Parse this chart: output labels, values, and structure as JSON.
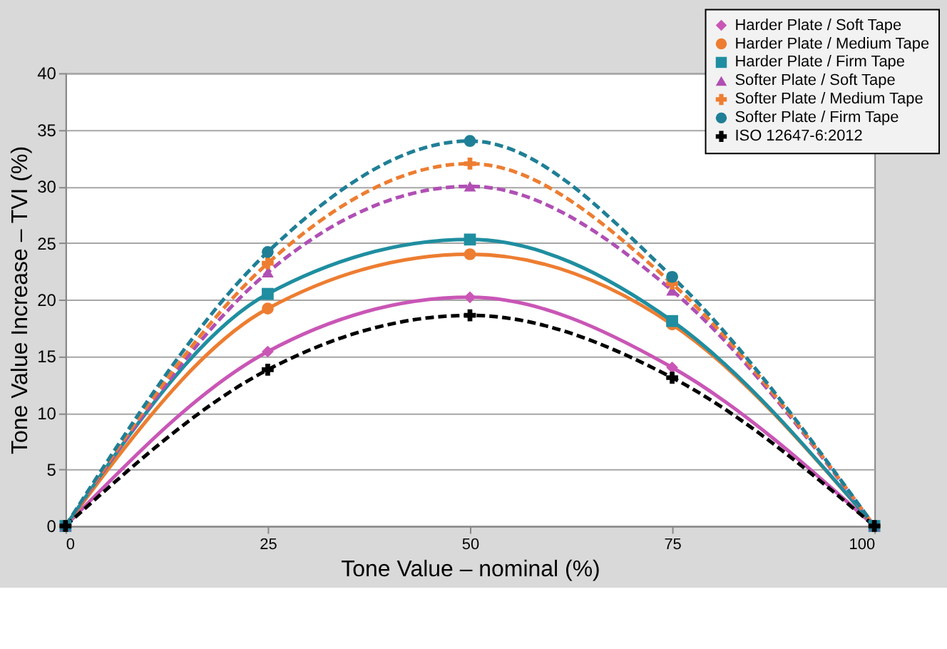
{
  "chart_data": {
    "type": "line",
    "xlabel": "Tone Value – nominal (%)",
    "ylabel": "Tone Value Increase – TVI (%)",
    "x": [
      0,
      25,
      50,
      75,
      100
    ],
    "xlim": [
      0,
      100
    ],
    "xticks": [
      0,
      25,
      50,
      75,
      100
    ],
    "ylim": [
      0,
      40
    ],
    "yticks": [
      0,
      5,
      10,
      15,
      20,
      25,
      30,
      35,
      40
    ],
    "grid": "y",
    "legend": "top right",
    "series": [
      {
        "name": "Harder Plate / Soft Tape",
        "color": "#c956b6",
        "values": [
          0,
          15.4,
          20.2,
          14,
          0
        ],
        "marker": "diamond",
        "line_style": "solid"
      },
      {
        "name": "Harder Plate / Medium Tape",
        "color": "#ed7d31",
        "values": [
          0,
          19.2,
          24,
          17.8,
          0
        ],
        "marker": "circle",
        "line_style": "solid"
      },
      {
        "name": "Harder Plate / Firm Tape",
        "color": "#1f8ea0",
        "values": [
          0,
          20.5,
          25.3,
          18.1,
          0
        ],
        "marker": "square",
        "line_style": "solid"
      },
      {
        "name": "Softer Plate / Soft Tape",
        "color": "#b04fb4",
        "values": [
          0,
          22.4,
          30,
          20.8,
          0
        ],
        "marker": "triangle",
        "line_style": "dashed"
      },
      {
        "name": "Softer Plate / Medium Tape",
        "color": "#ed7d31",
        "values": [
          0,
          23.2,
          32,
          21.4,
          0
        ],
        "marker": "cross",
        "line_style": "dashed"
      },
      {
        "name": "Softer Plate / Firm Tape",
        "color": "#1f7f96",
        "values": [
          0,
          24.2,
          34,
          22,
          0
        ],
        "marker": "circle",
        "line_style": "dashed"
      },
      {
        "name": "ISO 12647-6:2012",
        "color": "#000000",
        "values": [
          0,
          13.8,
          18.6,
          13.1,
          0
        ],
        "marker": "cross",
        "line_style": "dashed"
      }
    ]
  }
}
